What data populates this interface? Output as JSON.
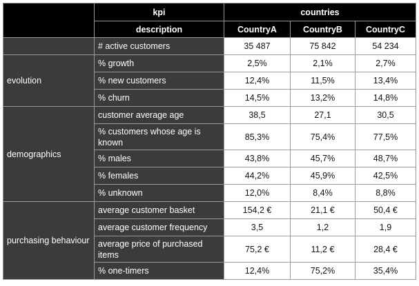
{
  "header": {
    "kpi": "kpi",
    "countries": "countries",
    "description": "description",
    "country_a": "CountryA",
    "country_b": "CountryB",
    "country_c": "CountryC"
  },
  "rows": [
    {
      "group": "",
      "description": "# active customers",
      "a": "35 487",
      "b": "75 842",
      "c": "54 234"
    },
    {
      "group": "evolution",
      "description": "% growth",
      "a": "2,5%",
      "b": "2,1%",
      "c": "2,7%"
    },
    {
      "group": "evolution",
      "description": "% new customers",
      "a": "12,4%",
      "b": "11,5%",
      "c": "13,4%"
    },
    {
      "group": "evolution",
      "description": "% churn",
      "a": "14,5%",
      "b": "13,2%",
      "c": "14,8%"
    },
    {
      "group": "demographics",
      "description": "customer average age",
      "a": "38,5",
      "b": "27,1",
      "c": "30,5"
    },
    {
      "group": "demographics",
      "description": "% customers whose age is known",
      "a": "85,3%",
      "b": "75,4%",
      "c": "77,5%"
    },
    {
      "group": "demographics",
      "description": "% males",
      "a": "43,8%",
      "b": "45,7%",
      "c": "48,7%"
    },
    {
      "group": "demographics",
      "description": "% females",
      "a": "44,2%",
      "b": "45,9%",
      "c": "42,5%"
    },
    {
      "group": "demographics",
      "description": "% unknown",
      "a": "12,0%",
      "b": "8,4%",
      "c": "8,8%"
    },
    {
      "group": "purchasing behaviour",
      "description": "average customer basket",
      "a": "154,2 €",
      "b": "21,1 €",
      "c": "50,4 €"
    },
    {
      "group": "purchasing behaviour",
      "description": "average customer frequency",
      "a": "3,5",
      "b": "1,2",
      "c": "1,9"
    },
    {
      "group": "purchasing behaviour",
      "description": "average price of purchased items",
      "a": "75,2 €",
      "b": "11,2 €",
      "c": "28,4 €"
    },
    {
      "group": "purchasing behaviour",
      "description": "% one-timers",
      "a": "12,4%",
      "b": "75,2%",
      "c": "35,4%"
    }
  ]
}
